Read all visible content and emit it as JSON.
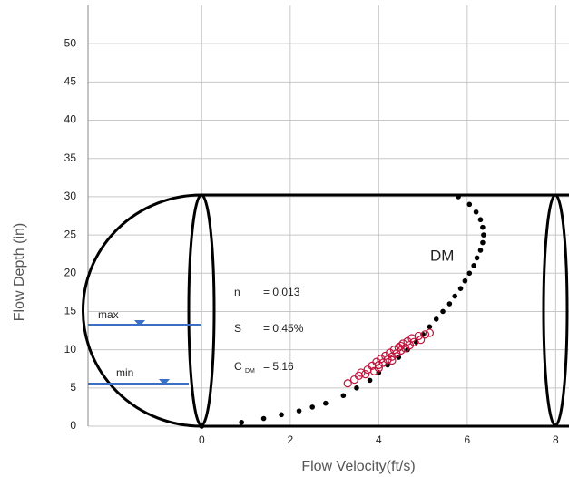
{
  "chart_data": {
    "type": "scatter",
    "xlabel": "Flow Velocity(ft/s)",
    "ylabel": "Flow Depth (in)",
    "xlim": [
      -2.57,
      8.3
    ],
    "ylim": [
      0,
      55
    ],
    "xticks": [
      0,
      2,
      4,
      6,
      8
    ],
    "yticks": [
      0,
      5,
      10,
      15,
      20,
      25,
      30,
      35,
      40,
      45,
      50
    ],
    "grid": true,
    "series": [
      {
        "name": "DM",
        "color": "#000000",
        "x": [
          0,
          0.9,
          1.4,
          1.8,
          2.2,
          2.5,
          2.8,
          3.2,
          3.5,
          3.8,
          4.0,
          4.2,
          4.45,
          4.65,
          4.85,
          5.0,
          5.15,
          5.3,
          5.45,
          5.6,
          5.72,
          5.85,
          5.95,
          6.05,
          6.15,
          6.22,
          6.3,
          6.35,
          6.37,
          6.35,
          6.3,
          6.2,
          6.05,
          5.8
        ],
        "values": [
          0,
          0.5,
          1,
          1.5,
          2,
          2.5,
          3,
          4,
          5,
          6,
          7,
          8,
          9,
          10,
          11,
          12,
          13,
          14,
          15,
          16,
          17,
          18,
          19,
          20,
          21,
          22,
          23,
          24,
          25,
          26,
          27,
          28,
          29,
          30
        ]
      },
      {
        "color": "#c0143c",
        "x": [
          3.3,
          3.45,
          3.55,
          3.6,
          3.7,
          3.75,
          3.85,
          3.9,
          3.95,
          4.0,
          4.05,
          4.1,
          4.15,
          4.2,
          4.25,
          4.3,
          4.35,
          4.4,
          4.45,
          4.5,
          4.55,
          4.6,
          4.65,
          4.7,
          4.75,
          4.8,
          4.9,
          4.95,
          5.05,
          5.15,
          4.0,
          4.3,
          4.5
        ],
        "values": [
          5.6,
          6.1,
          6.6,
          7.0,
          6.8,
          7.4,
          7.9,
          7.2,
          8.4,
          8.0,
          8.8,
          8.3,
          9.2,
          8.7,
          9.6,
          9.1,
          10.0,
          9.5,
          10.3,
          9.9,
          10.8,
          10.2,
          11.1,
          10.6,
          11.5,
          11.0,
          11.8,
          11.3,
          12.0,
          12.2,
          7.6,
          8.6,
          10.5
        ]
      }
    ],
    "annotations": [
      "n",
      "= 0.013",
      "S",
      "= 0.45%",
      "C",
      "DM",
      "= 5.16",
      "max",
      "min"
    ]
  }
}
